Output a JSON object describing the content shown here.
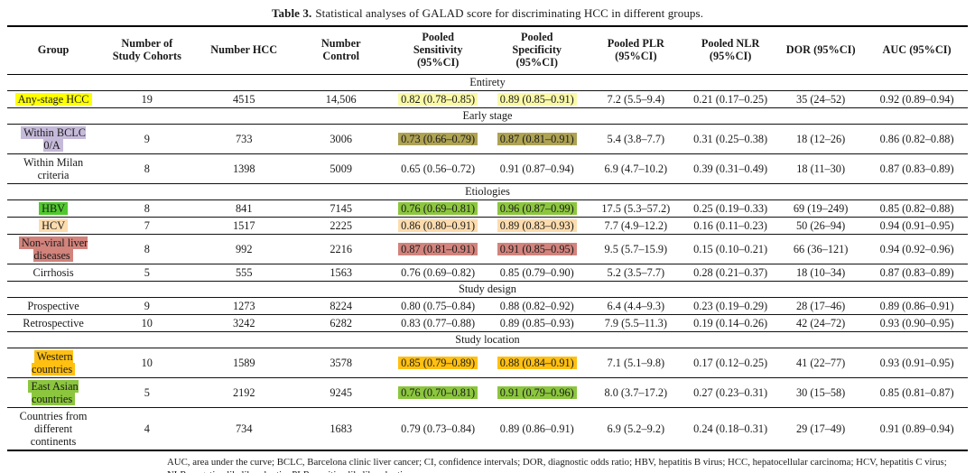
{
  "title": {
    "label": "Table 3.",
    "text": "Statistical analyses of GALAD score for discriminating HCC in different groups."
  },
  "table": {
    "columns": [
      "Group",
      "Number of\nStudy Cohorts",
      "Number HCC",
      "Number\nControl",
      "Pooled\nSensitivity\n(95%CI)",
      "Pooled\nSpecificity\n(95%CI)",
      "Pooled PLR\n(95%CI)",
      "Pooled NLR\n(95%CI)",
      "DOR (95%CI)",
      "AUC (95%CI)"
    ],
    "col_widths_pct": [
      9.6,
      9.9,
      10.3,
      9.9,
      10.3,
      10.3,
      10.3,
      9.4,
      9.4,
      10.6
    ],
    "sections": [
      {
        "header": "Entirety",
        "rows": [
          {
            "group": "Any-stage HCC",
            "group_bg": "#feff00",
            "cohorts": "19",
            "hcc": "4515",
            "control": "14,506",
            "sens": "0.82 (0.78–0.85)",
            "sens_bg": "#f9f9a8",
            "spec": "0.89 (0.85–0.91)",
            "spec_bg": "#f9f9a8",
            "plr": "7.2 (5.5–9.4)",
            "nlr": "0.21 (0.17–0.25)",
            "dor": "35 (24–52)",
            "auc": "0.92 (0.89–0.94)"
          }
        ]
      },
      {
        "header": "Early stage",
        "rows": [
          {
            "group": "Within BCLC\n0/A",
            "group_bg": "#c6bada",
            "cohorts": "9",
            "hcc": "733",
            "control": "3006",
            "sens": "0.73 (0.66–0.79)",
            "sens_bg": "#aea253",
            "spec": "0.87 (0.81–0.91)",
            "spec_bg": "#aea253",
            "plr": "5.4 (3.8–7.7)",
            "nlr": "0.31 (0.25–0.38)",
            "dor": "18 (12–26)",
            "auc": "0.86 (0.82–0.88)"
          },
          {
            "group": "Within Milan\ncriteria",
            "group_bg": null,
            "cohorts": "8",
            "hcc": "1398",
            "control": "5009",
            "sens": "0.65 (0.56–0.72)",
            "sens_bg": null,
            "spec": "0.91 (0.87–0.94)",
            "spec_bg": null,
            "plr": "6.9 (4.7–10.2)",
            "nlr": "0.39 (0.31–0.49)",
            "dor": "18 (11–30)",
            "auc": "0.87 (0.83–0.89)"
          }
        ]
      },
      {
        "header": "Etiologies",
        "rows": [
          {
            "group": "HBV",
            "group_bg": "#50c82d",
            "cohorts": "8",
            "hcc": "841",
            "control": "7145",
            "sens": "0.76 (0.69–0.81)",
            "sens_bg": "#8cc63f",
            "spec": "0.96 (0.87–0.99)",
            "spec_bg": "#8cc63f",
            "plr": "17.5 (5.3–57.2)",
            "nlr": "0.25 (0.19–0.33)",
            "dor": "69 (19–249)",
            "auc": "0.85 (0.82–0.88)"
          },
          {
            "group": "HCV",
            "group_bg": "#fcdcae",
            "cohorts": "7",
            "hcc": "1517",
            "control": "2225",
            "sens": "0.86 (0.80–0.91)",
            "sens_bg": "#fcdcae",
            "spec": "0.89 (0.83–0.93)",
            "spec_bg": "#fcdcae",
            "plr": "7.7 (4.9–12.2)",
            "nlr": "0.16 (0.11–0.23)",
            "dor": "50 (26–94)",
            "auc": "0.94 (0.91–0.95)"
          },
          {
            "group": "Non-viral liver\ndiseases",
            "group_bg": "#d1837c",
            "cohorts": "8",
            "hcc": "992",
            "control": "2216",
            "sens": "0.87 (0.81–0.91)",
            "sens_bg": "#d1837c",
            "spec": "0.91 (0.85–0.95)",
            "spec_bg": "#d1837c",
            "plr": "9.5 (5.7–15.9)",
            "nlr": "0.15 (0.10–0.21)",
            "dor": "66 (36–121)",
            "auc": "0.94 (0.92–0.96)"
          },
          {
            "group": "Cirrhosis",
            "group_bg": null,
            "cohorts": "5",
            "hcc": "555",
            "control": "1563",
            "sens": "0.76 (0.69–0.82)",
            "sens_bg": null,
            "spec": "0.85 (0.79–0.90)",
            "spec_bg": null,
            "plr": "5.2 (3.5–7.7)",
            "nlr": "0.28 (0.21–0.37)",
            "dor": "18 (10–34)",
            "auc": "0.87 (0.83–0.89)"
          }
        ]
      },
      {
        "header": "Study design",
        "rows": [
          {
            "group": "Prospective",
            "group_bg": null,
            "cohorts": "9",
            "hcc": "1273",
            "control": "8224",
            "sens": "0.80 (0.75–0.84)",
            "sens_bg": null,
            "spec": "0.88 (0.82–0.92)",
            "spec_bg": null,
            "plr": "6.4 (4.4–9.3)",
            "nlr": "0.23 (0.19–0.29)",
            "dor": "28 (17–46)",
            "auc": "0.89 (0.86–0.91)"
          },
          {
            "group": "Retrospective",
            "group_bg": null,
            "cohorts": "10",
            "hcc": "3242",
            "control": "6282",
            "sens": "0.83 (0.77–0.88)",
            "sens_bg": null,
            "spec": "0.89 (0.85–0.93)",
            "spec_bg": null,
            "plr": "7.9 (5.5–11.3)",
            "nlr": "0.19 (0.14–0.26)",
            "dor": "42 (24–72)",
            "auc": "0.93 (0.90–0.95)"
          }
        ]
      },
      {
        "header": "Study location",
        "rows": [
          {
            "group": "Western\ncountries",
            "group_bg": "#ffc011",
            "cohorts": "10",
            "hcc": "1589",
            "control": "3578",
            "sens": "0.85 (0.79–0.89)",
            "sens_bg": "#ffc011",
            "spec": "0.88 (0.84–0.91)",
            "spec_bg": "#ffc011",
            "plr": "7.1 (5.1–9.8)",
            "nlr": "0.17 (0.12–0.25)",
            "dor": "41 (22–77)",
            "auc": "0.93 (0.91–0.95)"
          },
          {
            "group": "East Asian\ncountries",
            "group_bg": "#8bc63e",
            "cohorts": "5",
            "hcc": "2192",
            "control": "9245",
            "sens": "0.76 (0.70–0.81)",
            "sens_bg": "#8bc63e",
            "spec": "0.91 (0.79–0.96)",
            "spec_bg": "#8bc63e",
            "plr": "8.0 (3.7–17.2)",
            "nlr": "0.27 (0.23–0.31)",
            "dor": "30 (15–58)",
            "auc": "0.85 (0.81–0.87)"
          },
          {
            "group": "Countries from\ndifferent\ncontinents",
            "group_bg": null,
            "cohorts": "4",
            "hcc": "734",
            "control": "1683",
            "sens": "0.79 (0.73–0.84)",
            "sens_bg": null,
            "spec": "0.89 (0.86–0.91)",
            "spec_bg": null,
            "plr": "6.9 (5.2–9.2)",
            "nlr": "0.24 (0.18–0.31)",
            "dor": "29 (17–49)",
            "auc": "0.91 (0.89–0.94)"
          }
        ]
      }
    ]
  },
  "footnote": "AUC, area under the curve; BCLC, Barcelona clinic liver cancer; CI, confidence intervals; DOR, diagnostic odds ratio; HBV, hepatitis B virus; HCC, hepatocellular carcinoma; HCV, hepatitis C virus; NLR, negative likelihood ratio; PLR, positive likelihood ratio."
}
